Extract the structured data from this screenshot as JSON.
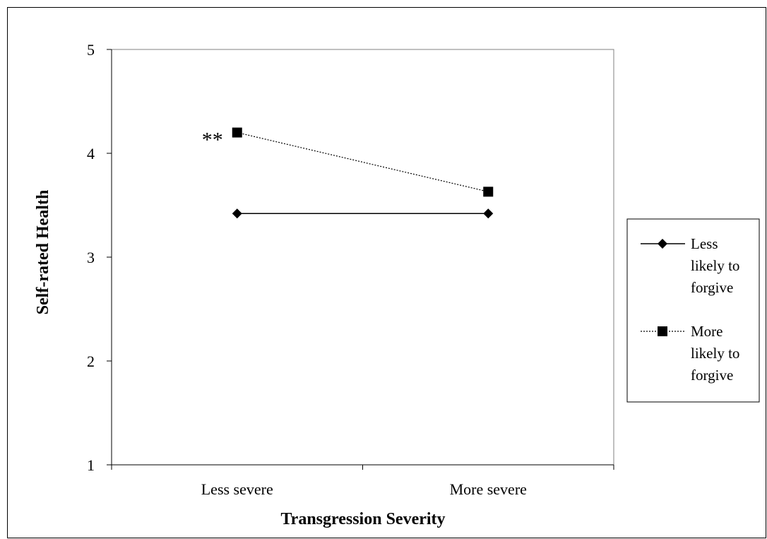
{
  "chart_data": {
    "type": "line",
    "categories": [
      "Less severe",
      "More severe"
    ],
    "series": [
      {
        "name": "Less likely to forgive",
        "values": [
          3.42,
          3.42
        ],
        "marker": "diamond",
        "line": "solid"
      },
      {
        "name": "More likely to forgive",
        "values": [
          4.2,
          3.63
        ],
        "marker": "square",
        "line": "dotted"
      }
    ],
    "title": "",
    "xlabel": "Transgression Severity",
    "ylabel": "Self-rated Health",
    "ylim": [
      1,
      5
    ],
    "yticks": [
      1,
      2,
      3,
      4,
      5
    ],
    "grid": false,
    "legend_position": "right",
    "legend_lines": [
      [
        "Less",
        "likely to",
        "forgive"
      ],
      [
        "More",
        "likely to",
        "forgive"
      ]
    ],
    "annotations": [
      {
        "text": "**",
        "category": "Less severe",
        "series": "More likely to forgive"
      }
    ],
    "colors": {
      "line": "#000000",
      "background": "#ffffff"
    }
  }
}
